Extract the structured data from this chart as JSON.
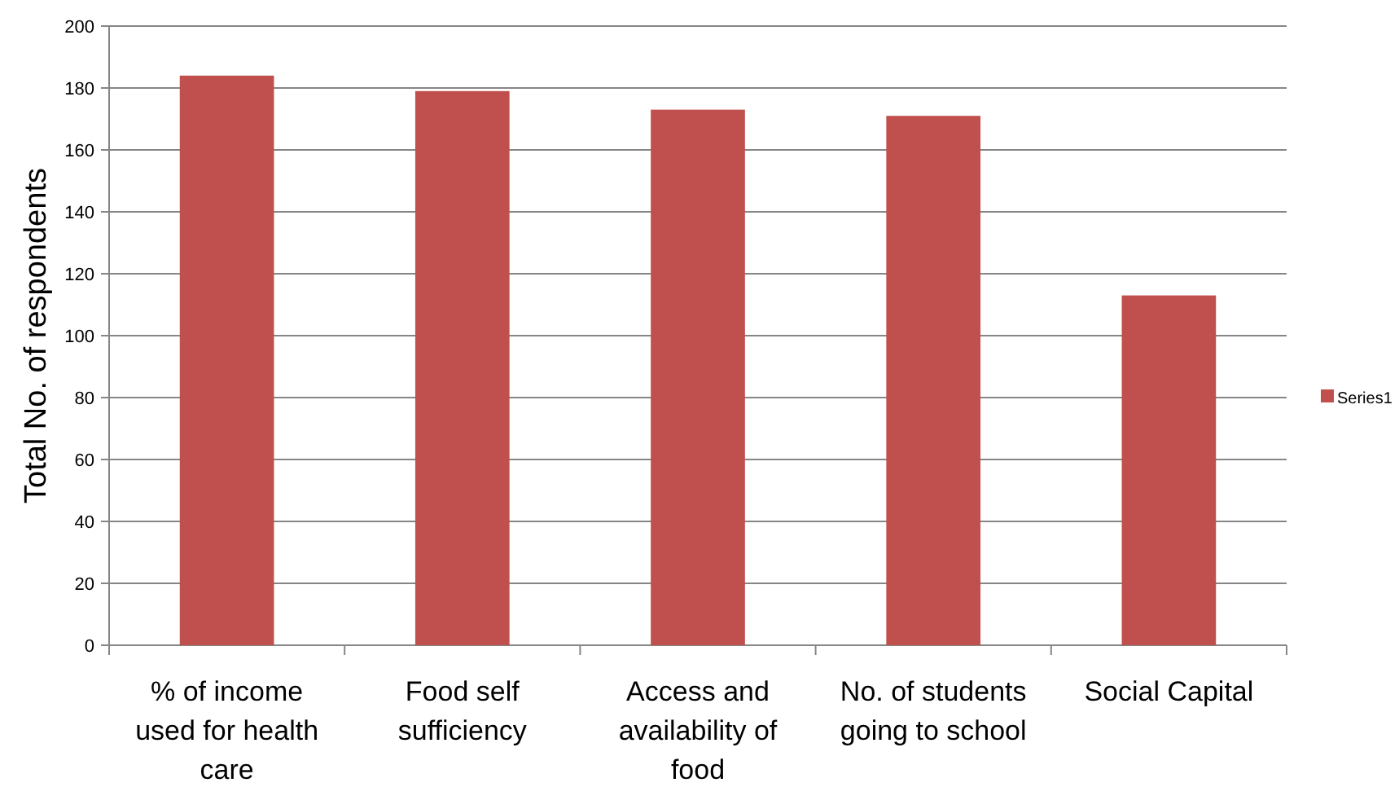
{
  "chart_data": {
    "type": "bar",
    "ylabel": "Total No. of respondents",
    "categories": [
      "% of income used for health care",
      "Food self sufficiency",
      "Access and availability of food",
      "No. of students going to school",
      "Social Capital"
    ],
    "series": [
      {
        "name": "Series1",
        "color": "#c0504d",
        "values": [
          184,
          179,
          173,
          171,
          113
        ]
      }
    ],
    "ylim": [
      0,
      200
    ],
    "yticks": [
      0,
      20,
      40,
      60,
      80,
      100,
      120,
      140,
      160,
      180,
      200
    ],
    "grid": "y",
    "legend": "right"
  }
}
